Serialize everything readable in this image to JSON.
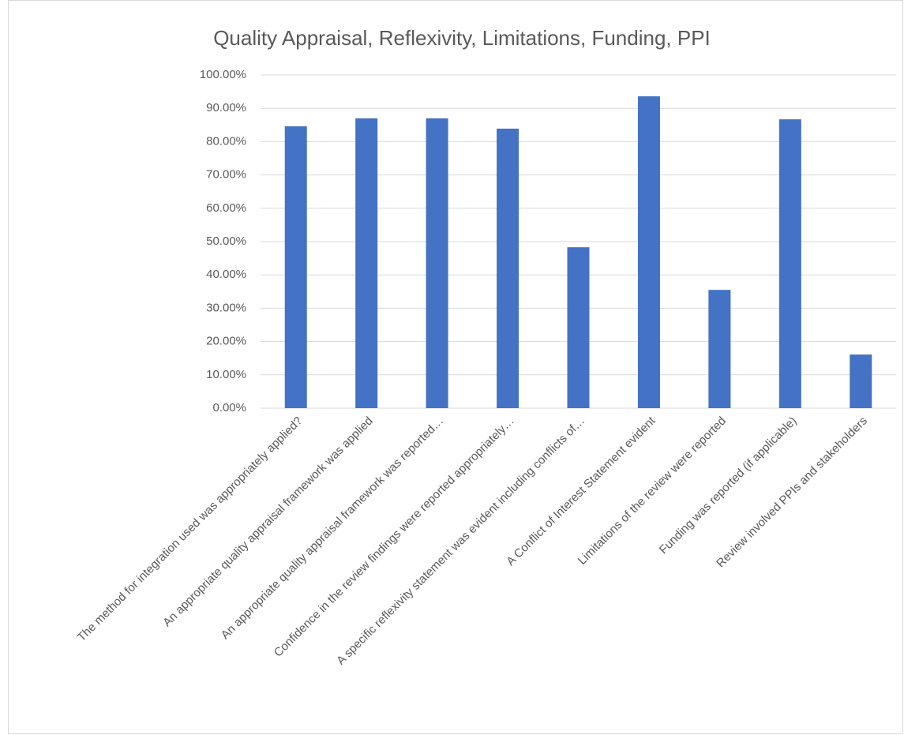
{
  "chart_data": {
    "type": "bar",
    "title": "Quality Appraisal, Reflexivity, Limitations, Funding, PPI",
    "categories": [
      "The method for integration used was appropriately applied?",
      "An appropriate quality appraisal framework was applied",
      "An appropriate quality appraisal framework was reported…",
      "Confidence in the review findings were reported appropriately…",
      "A specific reflexivity statement was evident including conflicts of…",
      "A Conflict of Interest Statement evident",
      "Limitations of the review were reported",
      "Funding was reported (if applicable)",
      "Review involved PPIs and stakeholders"
    ],
    "values": [
      84.6,
      87.0,
      87.0,
      83.9,
      48.3,
      93.6,
      35.5,
      86.7,
      16.1
    ],
    "color": "#4472c4",
    "ylim": [
      0,
      100
    ],
    "yticks": [
      {
        "value": 0,
        "label": "0.00%"
      },
      {
        "value": 10,
        "label": "10.00%"
      },
      {
        "value": 20,
        "label": "20.00%"
      },
      {
        "value": 30,
        "label": "30.00%"
      },
      {
        "value": 40,
        "label": "40.00%"
      },
      {
        "value": 50,
        "label": "50.00%"
      },
      {
        "value": 60,
        "label": "60.00%"
      },
      {
        "value": 70,
        "label": "70.00%"
      },
      {
        "value": 80,
        "label": "80.00%"
      },
      {
        "value": 90,
        "label": "90.00%"
      },
      {
        "value": 100,
        "label": "100.00%"
      }
    ],
    "grid": true
  }
}
